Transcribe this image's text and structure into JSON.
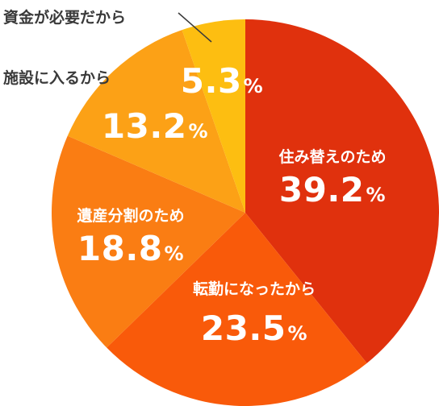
{
  "chart_data": {
    "type": "pie",
    "title": "",
    "slices": [
      {
        "name": "住み替えのため",
        "value": 39.2,
        "label": "39.2",
        "unit": "%",
        "color": "#e0310d"
      },
      {
        "name": "転勤になったから",
        "value": 23.5,
        "label": "23.5",
        "unit": "%",
        "color": "#f95a0a"
      },
      {
        "name": "遺産分割のため",
        "value": 18.8,
        "label": "18.8",
        "unit": "%",
        "color": "#fa7d13"
      },
      {
        "name": "施設に入るから",
        "value": 13.2,
        "label": "13.2",
        "unit": "%",
        "color": "#fca116"
      },
      {
        "name": "資金が必要だから",
        "value": 5.3,
        "label": "5.3",
        "unit": "%",
        "color": "#fdbe11"
      }
    ],
    "start": "12 o'clock",
    "direction": "clockwise",
    "legend": "none"
  }
}
